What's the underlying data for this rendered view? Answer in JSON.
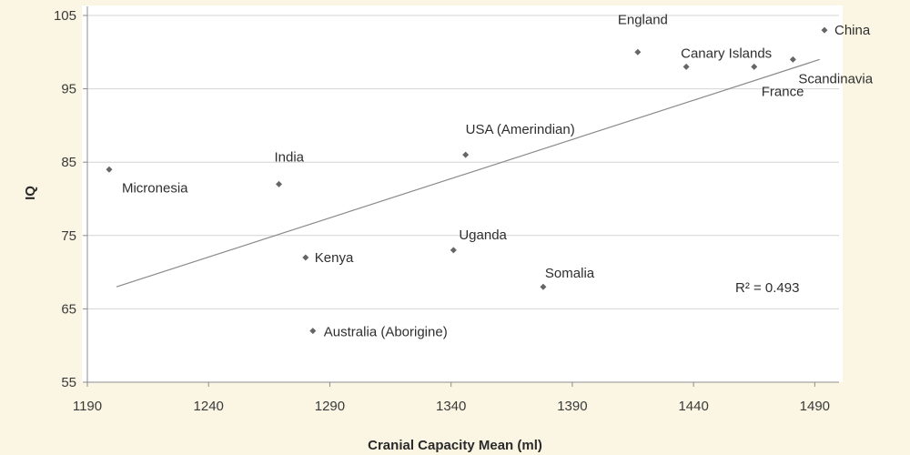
{
  "chart_data": {
    "type": "scatter",
    "title": "",
    "xlabel": "Cranial Capacity Mean (ml)",
    "ylabel": "IQ",
    "xlim": [
      1190,
      1500
    ],
    "ylim": [
      55,
      105
    ],
    "x_ticks": [
      1190,
      1240,
      1290,
      1340,
      1390,
      1440,
      1490
    ],
    "y_ticks": [
      55,
      65,
      75,
      85,
      95,
      105
    ],
    "grid": {
      "horizontal": true,
      "vertical": false
    },
    "points": [
      {
        "label": "Micronesia",
        "x": 1199,
        "y": 84
      },
      {
        "label": "India",
        "x": 1269,
        "y": 82
      },
      {
        "label": "Kenya",
        "x": 1280,
        "y": 72
      },
      {
        "label": "Australia (Aborigine)",
        "x": 1283,
        "y": 62
      },
      {
        "label": "Uganda",
        "x": 1341,
        "y": 73
      },
      {
        "label": "USA (Amerindian)",
        "x": 1346,
        "y": 86
      },
      {
        "label": "Somalia",
        "x": 1378,
        "y": 68
      },
      {
        "label": "England",
        "x": 1417,
        "y": 100
      },
      {
        "label": "Canary Islands",
        "x": 1437,
        "y": 98
      },
      {
        "label": "France",
        "x": 1465,
        "y": 98
      },
      {
        "label": "Scandinavia",
        "x": 1481,
        "y": 99
      },
      {
        "label": "China",
        "x": 1494,
        "y": 103
      }
    ],
    "trendline": {
      "type": "linear",
      "x": [
        1202,
        1492
      ],
      "y": [
        68,
        99
      ]
    },
    "annotation": "R² = 0.493",
    "colors": {
      "point": "#666666",
      "trendline": "#8a8a8a",
      "background": "#fbf6e4"
    }
  }
}
